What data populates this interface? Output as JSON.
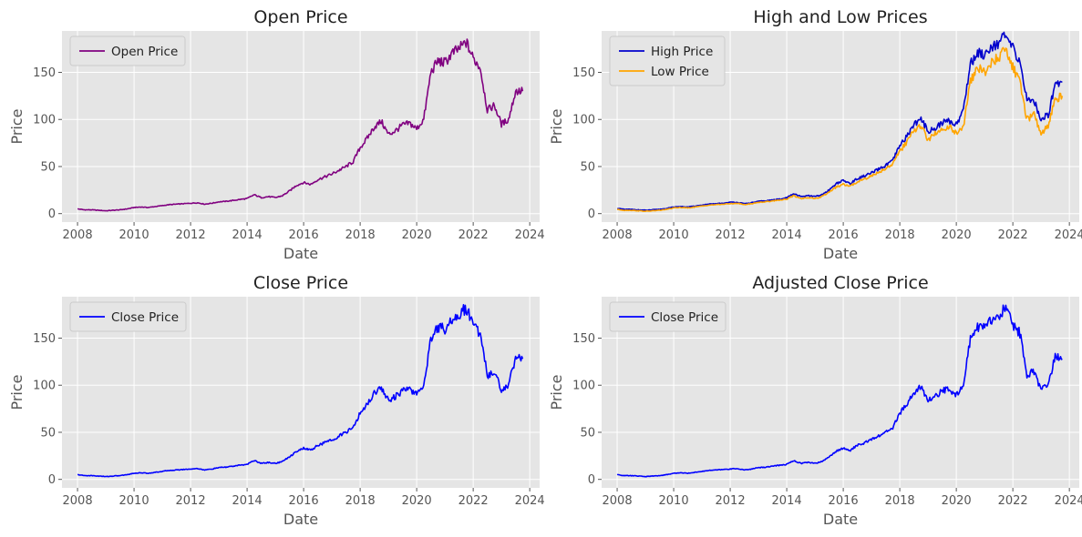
{
  "chart_data": [
    {
      "type": "line",
      "title": "Open Price",
      "xlabel": "Date",
      "ylabel": "Price",
      "xlim": [
        2007.45,
        2024.35
      ],
      "ylim": [
        -9,
        194
      ],
      "xticks": [
        2008,
        2010,
        2012,
        2014,
        2016,
        2018,
        2020,
        2022,
        2024
      ],
      "yticks": [
        0,
        50,
        100,
        150
      ],
      "grid": true,
      "legend_position": "top-left",
      "series": [
        {
          "name": "Open Price",
          "color": "#800080",
          "ref": "open"
        }
      ]
    },
    {
      "type": "line",
      "title": "High and Low Prices",
      "xlabel": "Date",
      "ylabel": "Price",
      "xlim": [
        2007.45,
        2024.35
      ],
      "ylim": [
        -9,
        194
      ],
      "xticks": [
        2008,
        2010,
        2012,
        2014,
        2016,
        2018,
        2020,
        2022,
        2024
      ],
      "yticks": [
        0,
        50,
        100,
        150
      ],
      "grid": true,
      "legend_position": "top-left",
      "series": [
        {
          "name": "High Price",
          "color": "#0000cc",
          "ref": "high"
        },
        {
          "name": "Low Price",
          "color": "#ffa500",
          "ref": "low"
        }
      ]
    },
    {
      "type": "line",
      "title": "Close Price",
      "xlabel": "Date",
      "ylabel": "Price",
      "xlim": [
        2007.45,
        2024.35
      ],
      "ylim": [
        -9,
        194
      ],
      "xticks": [
        2008,
        2010,
        2012,
        2014,
        2016,
        2018,
        2020,
        2022,
        2024
      ],
      "yticks": [
        0,
        50,
        100,
        150
      ],
      "grid": true,
      "legend_position": "top-left",
      "series": [
        {
          "name": "Close Price",
          "color": "#0000ff",
          "ref": "close"
        }
      ]
    },
    {
      "type": "line",
      "title": "Adjusted Close Price",
      "xlabel": "Date",
      "ylabel": "Price",
      "xlim": [
        2007.45,
        2024.35
      ],
      "ylim": [
        -9,
        194
      ],
      "xticks": [
        2008,
        2010,
        2012,
        2014,
        2016,
        2018,
        2020,
        2022,
        2024
      ],
      "yticks": [
        0,
        50,
        100,
        150
      ],
      "grid": true,
      "legend_position": "top-left",
      "series": [
        {
          "name": "Close Price",
          "color": "#0000ff",
          "ref": "adjclose"
        }
      ]
    }
  ],
  "series_values": {
    "x": [
      2008.0,
      2008.25,
      2008.5,
      2008.75,
      2009.0,
      2009.25,
      2009.5,
      2009.75,
      2010.0,
      2010.25,
      2010.5,
      2010.75,
      2011.0,
      2011.25,
      2011.5,
      2011.75,
      2012.0,
      2012.25,
      2012.5,
      2012.75,
      2013.0,
      2013.25,
      2013.5,
      2013.75,
      2014.0,
      2014.25,
      2014.5,
      2014.75,
      2015.0,
      2015.25,
      2015.5,
      2015.75,
      2016.0,
      2016.25,
      2016.5,
      2016.75,
      2017.0,
      2017.25,
      2017.5,
      2017.75,
      2018.0,
      2018.25,
      2018.5,
      2018.75,
      2019.0,
      2019.25,
      2019.5,
      2019.75,
      2020.0,
      2020.25,
      2020.5,
      2020.75,
      2021.0,
      2021.25,
      2021.5,
      2021.75,
      2022.0,
      2022.25,
      2022.5,
      2022.75,
      2023.0,
      2023.25,
      2023.5,
      2023.75
    ],
    "open": [
      5,
      4,
      4,
      3.5,
      3,
      3.5,
      4,
      5,
      6.5,
      7,
      6.5,
      7.5,
      8.5,
      9.5,
      10,
      10.5,
      11,
      11.5,
      10,
      11,
      12.5,
      13,
      14,
      15,
      16,
      20,
      17,
      18,
      17,
      19,
      24,
      30,
      33,
      31,
      36,
      39,
      42,
      46,
      50,
      55,
      70,
      80,
      92,
      98,
      84,
      88,
      94,
      96,
      90,
      100,
      150,
      162,
      160,
      170,
      175,
      182,
      165,
      155,
      110,
      115,
      95,
      100,
      130,
      130
    ],
    "high": [
      5.5,
      4.5,
      4.5,
      4,
      3.5,
      4,
      4.5,
      5.5,
      7,
      7.5,
      7,
      8,
      9,
      10,
      10.5,
      11,
      12,
      12,
      10.5,
      11.5,
      13,
      13.5,
      14.5,
      15.5,
      17,
      21,
      18,
      19,
      18,
      20,
      25,
      32,
      35,
      32,
      37,
      40,
      43,
      47,
      51,
      56,
      72,
      82,
      95,
      100,
      88,
      90,
      97,
      98,
      95,
      110,
      160,
      170,
      170,
      178,
      182,
      188,
      175,
      162,
      120,
      120,
      100,
      105,
      138,
      140
    ],
    "low": [
      4.5,
      3.5,
      3.5,
      3,
      2.5,
      3,
      3.5,
      4.5,
      6,
      6.5,
      6,
      7,
      8,
      9,
      9.5,
      10,
      10.5,
      11,
      9.5,
      10.5,
      12,
      12.5,
      13.5,
      14.5,
      15.5,
      19,
      16,
      17,
      16,
      18,
      23,
      28,
      31,
      29,
      34,
      37,
      40,
      44,
      48,
      53,
      66,
      76,
      88,
      94,
      78,
      85,
      90,
      92,
      85,
      92,
      140,
      155,
      150,
      160,
      166,
      175,
      155,
      140,
      100,
      105,
      85,
      94,
      122,
      125
    ],
    "close": [
      5,
      4,
      4,
      3.5,
      3,
      3.5,
      4,
      5,
      6.5,
      7,
      6.5,
      7.5,
      8.5,
      9.5,
      10,
      10.5,
      11,
      11.5,
      10,
      11,
      12.5,
      13,
      14,
      15,
      16,
      20,
      17,
      18,
      17,
      19,
      24,
      30,
      33,
      31,
      36,
      39,
      42,
      46,
      50,
      55,
      70,
      80,
      92,
      98,
      84,
      88,
      94,
      96,
      90,
      100,
      150,
      162,
      160,
      170,
      175,
      182,
      165,
      155,
      110,
      115,
      95,
      100,
      130,
      128
    ],
    "adjclose": [
      5,
      4,
      4,
      3.5,
      3,
      3.5,
      4,
      5,
      6.5,
      7,
      6.5,
      7.5,
      8.5,
      9.5,
      10,
      10.5,
      11,
      11.5,
      10,
      11,
      12.5,
      13,
      14,
      15,
      16,
      20,
      17,
      18,
      17,
      19,
      24,
      30,
      33,
      31,
      36,
      39,
      42,
      46,
      50,
      55,
      70,
      80,
      92,
      98,
      84,
      88,
      94,
      96,
      90,
      100,
      150,
      162,
      160,
      170,
      175,
      182,
      165,
      155,
      110,
      115,
      95,
      100,
      130,
      128
    ]
  }
}
